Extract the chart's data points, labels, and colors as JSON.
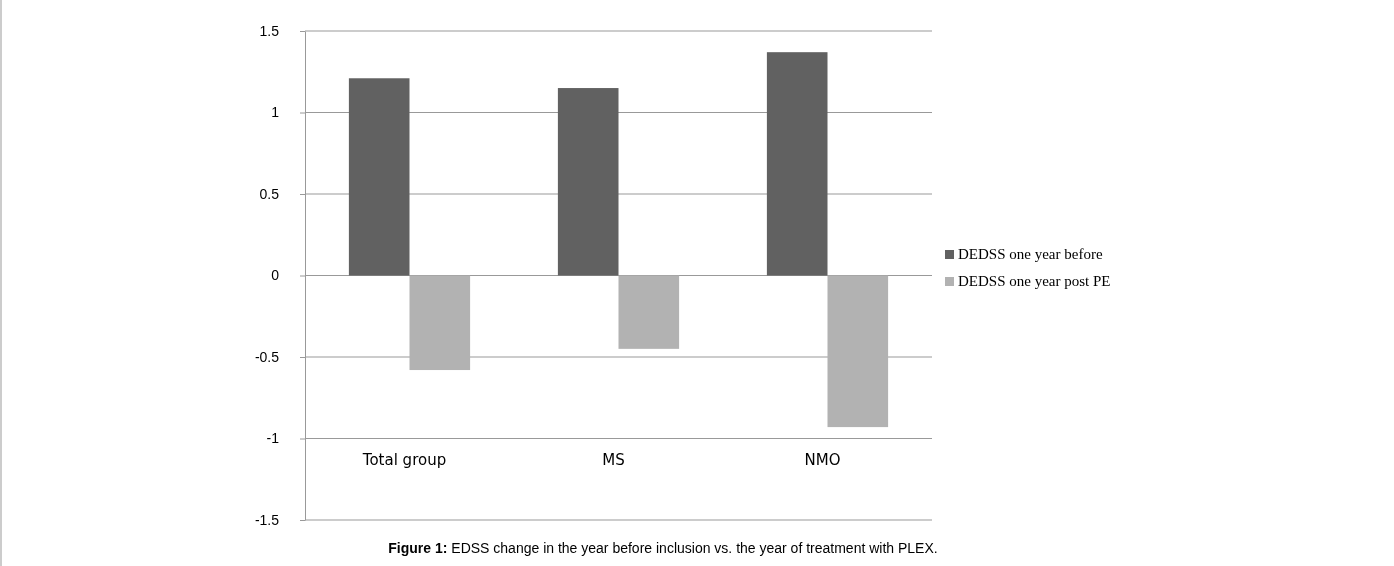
{
  "chart_data": {
    "type": "bar",
    "title": "Figure 1: EDSS change in the year before inclusion vs. the year of treatment with PLEX.",
    "categories": [
      "Total group",
      "MS",
      "NMO"
    ],
    "series": [
      {
        "name": "DEDSS one year before",
        "color": "#616161",
        "values": [
          1.21,
          1.15,
          1.37
        ]
      },
      {
        "name": "DEDSS one year post PE",
        "color": "#b2b2b2",
        "values": [
          -0.58,
          -0.45,
          -0.93
        ]
      }
    ],
    "ylim": [
      -1.5,
      1.5
    ],
    "yticks": [
      -1.5,
      -1,
      -0.5,
      0,
      0.5,
      1,
      1.5
    ],
    "grid": "y",
    "legend": "right"
  }
}
